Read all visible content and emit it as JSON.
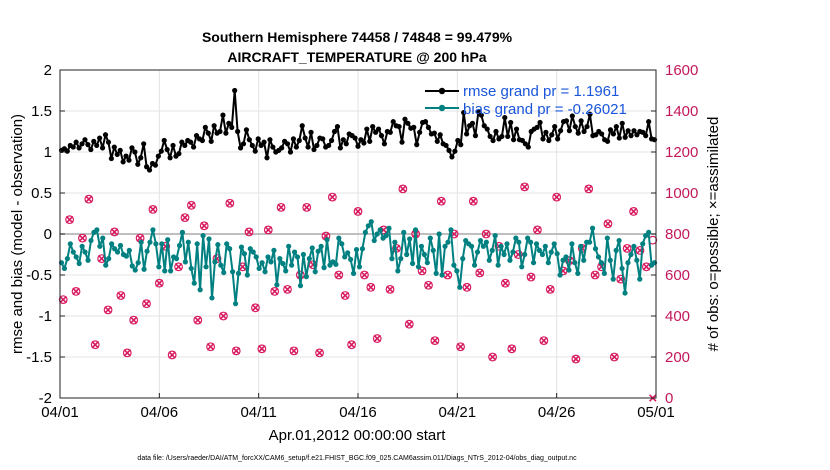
{
  "chart_data": {
    "type": "line",
    "title": "Southern Hemisphere 74458 / 74848 = 99.479%",
    "subtitle": "AIRCRAFT_TEMPERATURE @ 200 hPa",
    "xlabel": "Apr.01,2012 00:00:00 start",
    "ylabel_left": "rmse and bias (model - observation)",
    "ylabel_right": "# of obs: o=possible; ×=assimilated",
    "footer": "data file: /Users/raeder/DAI/ATM_forcXX/CAM6_setup/f.e21.FHIST_BGC.f09_025.CAM6assim.011/Diags_NTrS_2012-04/obs_diag_output.nc",
    "x_ticks": [
      "04/01",
      "04/06",
      "04/11",
      "04/16",
      "04/21",
      "04/26",
      "05/01"
    ],
    "y_left_ticks": [
      "-2",
      "-1.5",
      "-1",
      "-0.5",
      "0",
      "0.5",
      "1",
      "1.5",
      "2"
    ],
    "y_right_ticks": [
      "0",
      "200",
      "400",
      "600",
      "800",
      "1000",
      "1200",
      "1400",
      "1600"
    ],
    "xlim_days": [
      0,
      30
    ],
    "ylim_left": [
      -2,
      2
    ],
    "ylim_right": [
      0,
      1600
    ],
    "grid": true,
    "legend_position": "top-right",
    "series": [
      {
        "name": "rmse grand pr = 1.1961",
        "color": "#000000",
        "axis": "left",
        "values": [
          1.02,
          1.04,
          1.01,
          1.08,
          1.06,
          1.12,
          1.05,
          1.1,
          1.15,
          1.09,
          1.03,
          1.13,
          1.08,
          1.17,
          1.05,
          1.21,
          1.12,
          0.92,
          1.06,
          0.97,
          1.02,
          0.88,
          0.95,
          0.9,
          1.05,
          1.0,
          0.85,
          0.93,
          1.1,
          0.82,
          0.78,
          0.86,
          0.84,
          0.95,
          1.01,
          1.14,
          1.03,
          0.93,
          1.08,
          0.95,
          0.98,
          1.12,
          1.08,
          1.14,
          1.12,
          1.06,
          1.2,
          1.16,
          1.14,
          1.3,
          1.23,
          1.13,
          1.32,
          1.23,
          1.25,
          1.45,
          1.23,
          1.35,
          1.3,
          1.75,
          1.25,
          1.05,
          1.1,
          1.27,
          1.15,
          1.08,
          1.01,
          1.16,
          1.08,
          1.12,
          0.93,
          1.15,
          1.06,
          1.0,
          1.02,
          1.05,
          1.13,
          1.1,
          1.0,
          1.16,
          1.06,
          1.14,
          1.32,
          1.17,
          1.06,
          1.24,
          1.03,
          1.08,
          1.17,
          1.16,
          1.06,
          1.08,
          1.14,
          1.25,
          1.31,
          1.05,
          1.15,
          1.1,
          1.22,
          1.2,
          1.17,
          1.07,
          1.15,
          1.11,
          1.28,
          1.13,
          1.31,
          1.24,
          1.28,
          1.2,
          1.1,
          1.25,
          1.24,
          1.37,
          1.32,
          1.31,
          1.12,
          1.4,
          1.35,
          1.29,
          1.3,
          1.09,
          1.24,
          1.36,
          1.37,
          1.3,
          1.22,
          1.23,
          1.13,
          1.21,
          1.1,
          1.08,
          1.02,
          0.94,
          1.01,
          1.14,
          1.09,
          1.48,
          1.22,
          1.32,
          1.35,
          1.2,
          1.49,
          1.45,
          1.32,
          1.28,
          1.19,
          1.14,
          1.25,
          1.16,
          1.19,
          1.42,
          1.19,
          1.36,
          1.15,
          1.28,
          1.15,
          1.14,
          1.1,
          1.06,
          1.25,
          1.28,
          1.3,
          1.36,
          1.16,
          1.24,
          1.14,
          1.21,
          1.31,
          1.16,
          1.26,
          1.37,
          1.38,
          1.26,
          1.44,
          1.31,
          1.23,
          1.38,
          1.25,
          1.31,
          1.46,
          1.2,
          1.21,
          1.25,
          1.22,
          1.15,
          1.13,
          1.27,
          1.22,
          1.31,
          1.17,
          1.35,
          1.18,
          1.26,
          1.2,
          1.26,
          1.21,
          1.25,
          1.24,
          1.2,
          1.37,
          1.16,
          1.15
        ]
      },
      {
        "name": "bias grand pr = -0.26021",
        "color": "#008080",
        "axis": "left",
        "values": [
          -0.35,
          -0.42,
          -0.3,
          -0.12,
          -0.22,
          -0.28,
          -0.36,
          -0.15,
          -0.22,
          -0.32,
          -0.08,
          0.02,
          0.05,
          -0.15,
          -0.05,
          -0.38,
          -0.3,
          -0.12,
          -0.18,
          -0.22,
          -0.14,
          -0.25,
          -0.27,
          -0.2,
          -0.39,
          -0.44,
          -0.35,
          -0.1,
          -0.43,
          -0.21,
          -0.1,
          0.05,
          -0.12,
          -0.4,
          -0.12,
          -0.45,
          -0.07,
          -0.45,
          -0.28,
          -0.3,
          -0.14,
          0.02,
          -0.34,
          -0.1,
          -0.42,
          -0.6,
          -0.12,
          -0.68,
          -0.02,
          -0.4,
          -0.06,
          -0.78,
          -0.34,
          -0.13,
          -0.38,
          -0.47,
          -0.12,
          -0.18,
          -0.46,
          -0.85,
          -0.48,
          -0.16,
          -0.24,
          -0.5,
          -0.18,
          -0.22,
          -0.28,
          -0.42,
          -0.35,
          -0.46,
          -0.28,
          -0.34,
          -0.2,
          -0.62,
          -0.3,
          -0.36,
          -0.45,
          -0.15,
          -0.38,
          -0.22,
          -0.28,
          -0.63,
          -0.25,
          -0.52,
          -0.3,
          -0.17,
          -0.46,
          -0.21,
          -0.15,
          -0.41,
          -0.07,
          -0.38,
          -0.34,
          -0.37,
          -0.05,
          -0.12,
          -0.28,
          -0.23,
          -0.31,
          -0.48,
          -0.19,
          -0.4,
          -0.18,
          0.02,
          0.1,
          0.15,
          -0.08,
          0.0,
          0.05,
          -0.05,
          -0.02,
          0.07,
          -0.3,
          -0.1,
          -0.45,
          -0.3,
          0.02,
          -0.25,
          -0.06,
          -0.36,
          0.05,
          -0.4,
          -0.15,
          -0.25,
          -0.35,
          -0.05,
          -0.2,
          -0.48,
          0.0,
          -0.5,
          -0.15,
          -0.1,
          0.05,
          -0.38,
          -0.45,
          -0.65,
          -0.3,
          -0.08,
          -0.12,
          -0.15,
          -0.38,
          -0.22,
          -0.08,
          -0.15,
          -0.1,
          -0.32,
          -0.2,
          -0.02,
          -0.38,
          -0.15,
          -0.25,
          -0.12,
          -0.32,
          -0.22,
          -0.05,
          -0.1,
          -0.4,
          -0.25,
          -0.05,
          -0.1,
          -0.35,
          -0.12,
          -0.2,
          -0.25,
          -0.15,
          -0.35,
          -0.22,
          -0.12,
          -0.24,
          -0.5,
          -0.32,
          -0.28,
          -0.44,
          -0.12,
          -0.35,
          -0.48,
          -0.15,
          -0.32,
          -0.1,
          -0.1,
          0.07,
          -0.18,
          -0.28,
          -0.35,
          -0.48,
          -0.05,
          -0.32,
          -0.55,
          -0.2,
          -0.08,
          -0.42,
          -0.72,
          -0.35,
          -0.25,
          -0.15,
          -0.32,
          -0.55,
          -0.12,
          -0.02,
          0.02,
          -0.38,
          -0.35
        ]
      },
      {
        "name": "possible",
        "color": "#d81b60",
        "axis": "right",
        "marker": "o",
        "values": [
          480,
          870,
          520,
          780,
          970,
          260,
          680,
          430,
          810,
          500,
          220,
          380,
          780,
          460,
          920,
          560,
          740,
          210,
          640,
          880,
          940,
          380,
          840,
          250,
          680,
          400,
          950,
          230,
          640,
          810,
          440,
          240,
          820,
          520,
          930,
          530,
          230,
          600,
          930,
          650,
          220,
          790,
          980,
          600,
          500,
          260,
          910,
          600,
          540,
          290,
          820,
          530,
          730,
          1020,
          360,
          800,
          620,
          550,
          280,
          960,
          600,
          800,
          250,
          540,
          960,
          610,
          800,
          200,
          740,
          560,
          240,
          700,
          1030,
          590,
          820,
          280,
          530,
          980,
          620,
          670,
          190,
          730,
          1020,
          600,
          640,
          850,
          200,
          580,
          730,
          910,
          720,
          640,
          770
        ]
      },
      {
        "name": "assimilated",
        "color": "#d81b60",
        "axis": "right",
        "marker": "x",
        "values": [
          480,
          870,
          520,
          780,
          970,
          260,
          680,
          430,
          810,
          500,
          220,
          380,
          780,
          460,
          920,
          560,
          740,
          210,
          640,
          880,
          940,
          380,
          840,
          250,
          680,
          400,
          950,
          230,
          640,
          810,
          440,
          240,
          820,
          520,
          930,
          530,
          230,
          600,
          930,
          650,
          220,
          790,
          980,
          600,
          500,
          260,
          910,
          600,
          540,
          290,
          820,
          530,
          730,
          1020,
          360,
          800,
          620,
          550,
          280,
          960,
          600,
          800,
          250,
          540,
          960,
          610,
          800,
          200,
          740,
          560,
          240,
          700,
          1030,
          590,
          820,
          280,
          530,
          980,
          620,
          670,
          190,
          730,
          1020,
          600,
          640,
          850,
          200,
          580,
          730,
          910,
          720,
          640,
          0
        ]
      }
    ]
  }
}
